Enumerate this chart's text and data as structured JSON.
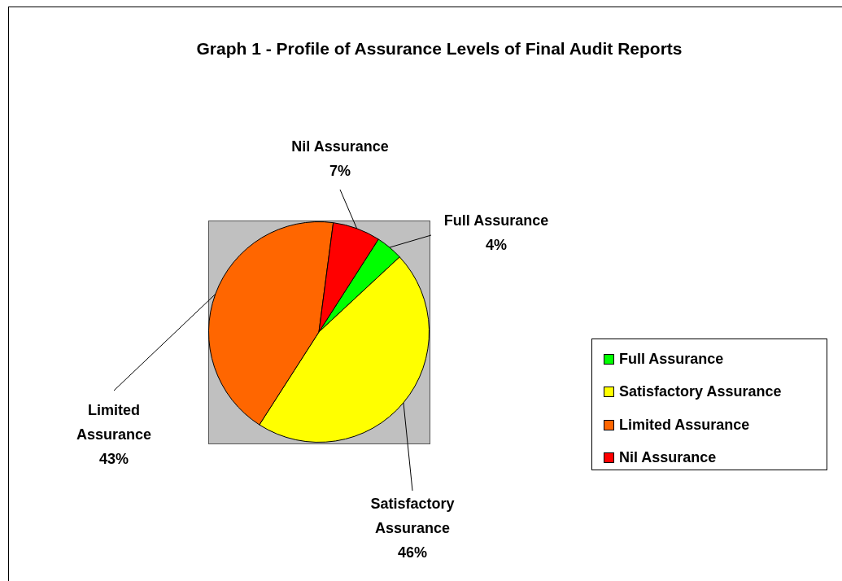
{
  "chart_data": {
    "type": "pie",
    "title": "Graph 1 - Profile of Assurance Levels of Final Audit Reports",
    "categories": [
      "Full Assurance",
      "Satisfactory Assurance",
      "Limited Assurance",
      "Nil Assurance"
    ],
    "values": [
      4,
      46,
      43,
      7
    ],
    "value_labels": [
      "4%",
      "46%",
      "43%",
      "7%"
    ],
    "colors": [
      "#00ff00",
      "#ffff00",
      "#ff6600",
      "#ff0000"
    ],
    "legend": "right"
  }
}
